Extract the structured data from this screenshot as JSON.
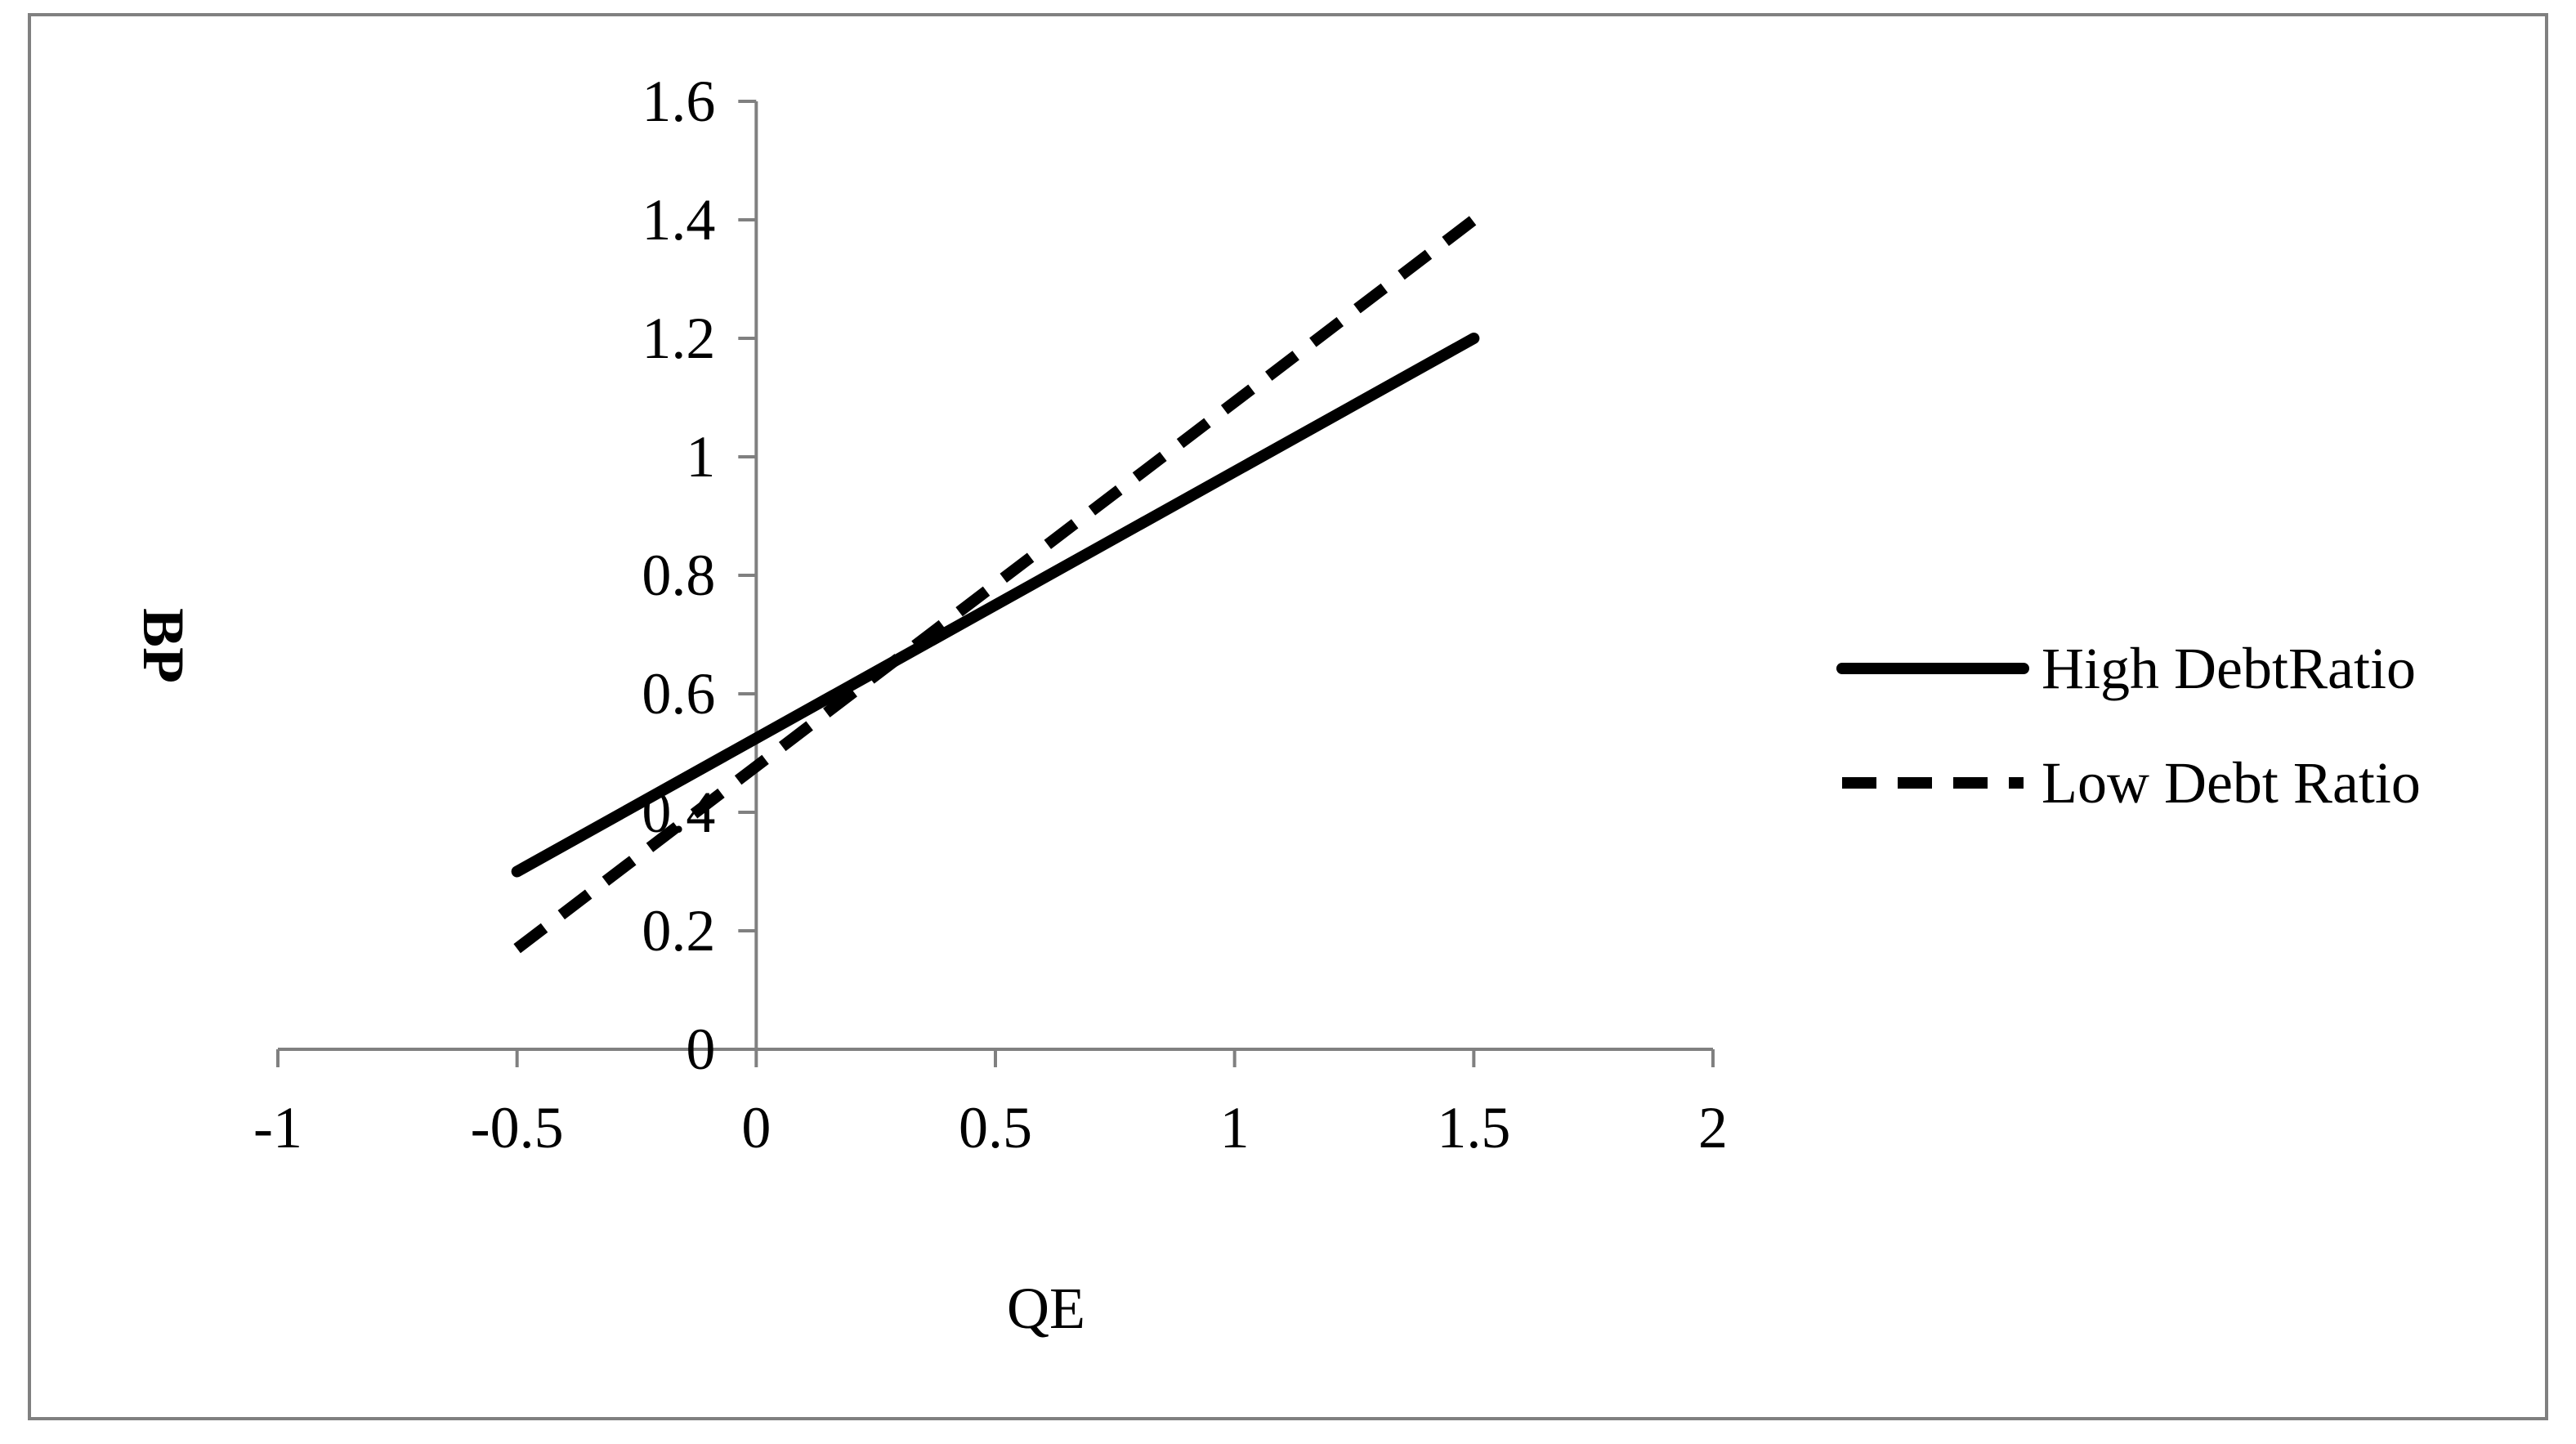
{
  "chart_data": {
    "type": "line",
    "title": "",
    "xlabel": "QE",
    "ylabel": "BP",
    "xlim": [
      -1,
      2
    ],
    "ylim": [
      0,
      1.6
    ],
    "x_ticks": [
      "-1",
      "-0.5",
      "0",
      "0.5",
      "1",
      "1.5",
      "2"
    ],
    "y_ticks": [
      "0",
      "0.2",
      "0.4",
      "0.6",
      "0.8",
      "1",
      "1.2",
      "1.4",
      "1.6"
    ],
    "grid": false,
    "legend_position": "right",
    "series": [
      {
        "name": "High DebtRatio",
        "style": "solid",
        "color": "#000000",
        "x": [
          -0.5,
          1.5
        ],
        "y": [
          0.3,
          1.2
        ]
      },
      {
        "name": "Low Debt Ratio",
        "style": "dashed",
        "color": "#000000",
        "x": [
          -0.5,
          1.5
        ],
        "y": [
          0.17,
          1.4
        ]
      }
    ]
  }
}
